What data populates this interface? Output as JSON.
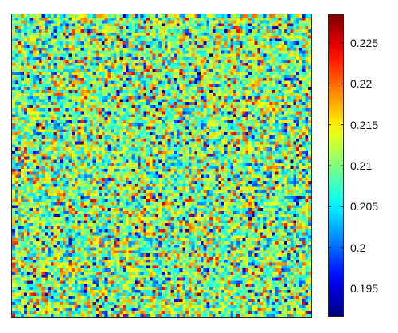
{
  "chart_data": {
    "type": "heatmap",
    "title": "",
    "xlabel": "",
    "ylabel": "",
    "grid_rows": 100,
    "grid_cols": 100,
    "value_range": [
      0.1915,
      0.2285
    ],
    "value_mean": 0.21,
    "value_spread": 0.0065,
    "colormap": "jet",
    "colorbar": {
      "position": "right",
      "ticks": [
        0.195,
        0.2,
        0.205,
        0.21,
        0.215,
        0.22,
        0.225
      ],
      "tick_labels": [
        "0.195",
        "0.2",
        "0.205",
        "0.21",
        "0.215",
        "0.22",
        "0.225"
      ]
    },
    "note_values": "per-cell values are random noise; only the distribution is reproduced"
  }
}
